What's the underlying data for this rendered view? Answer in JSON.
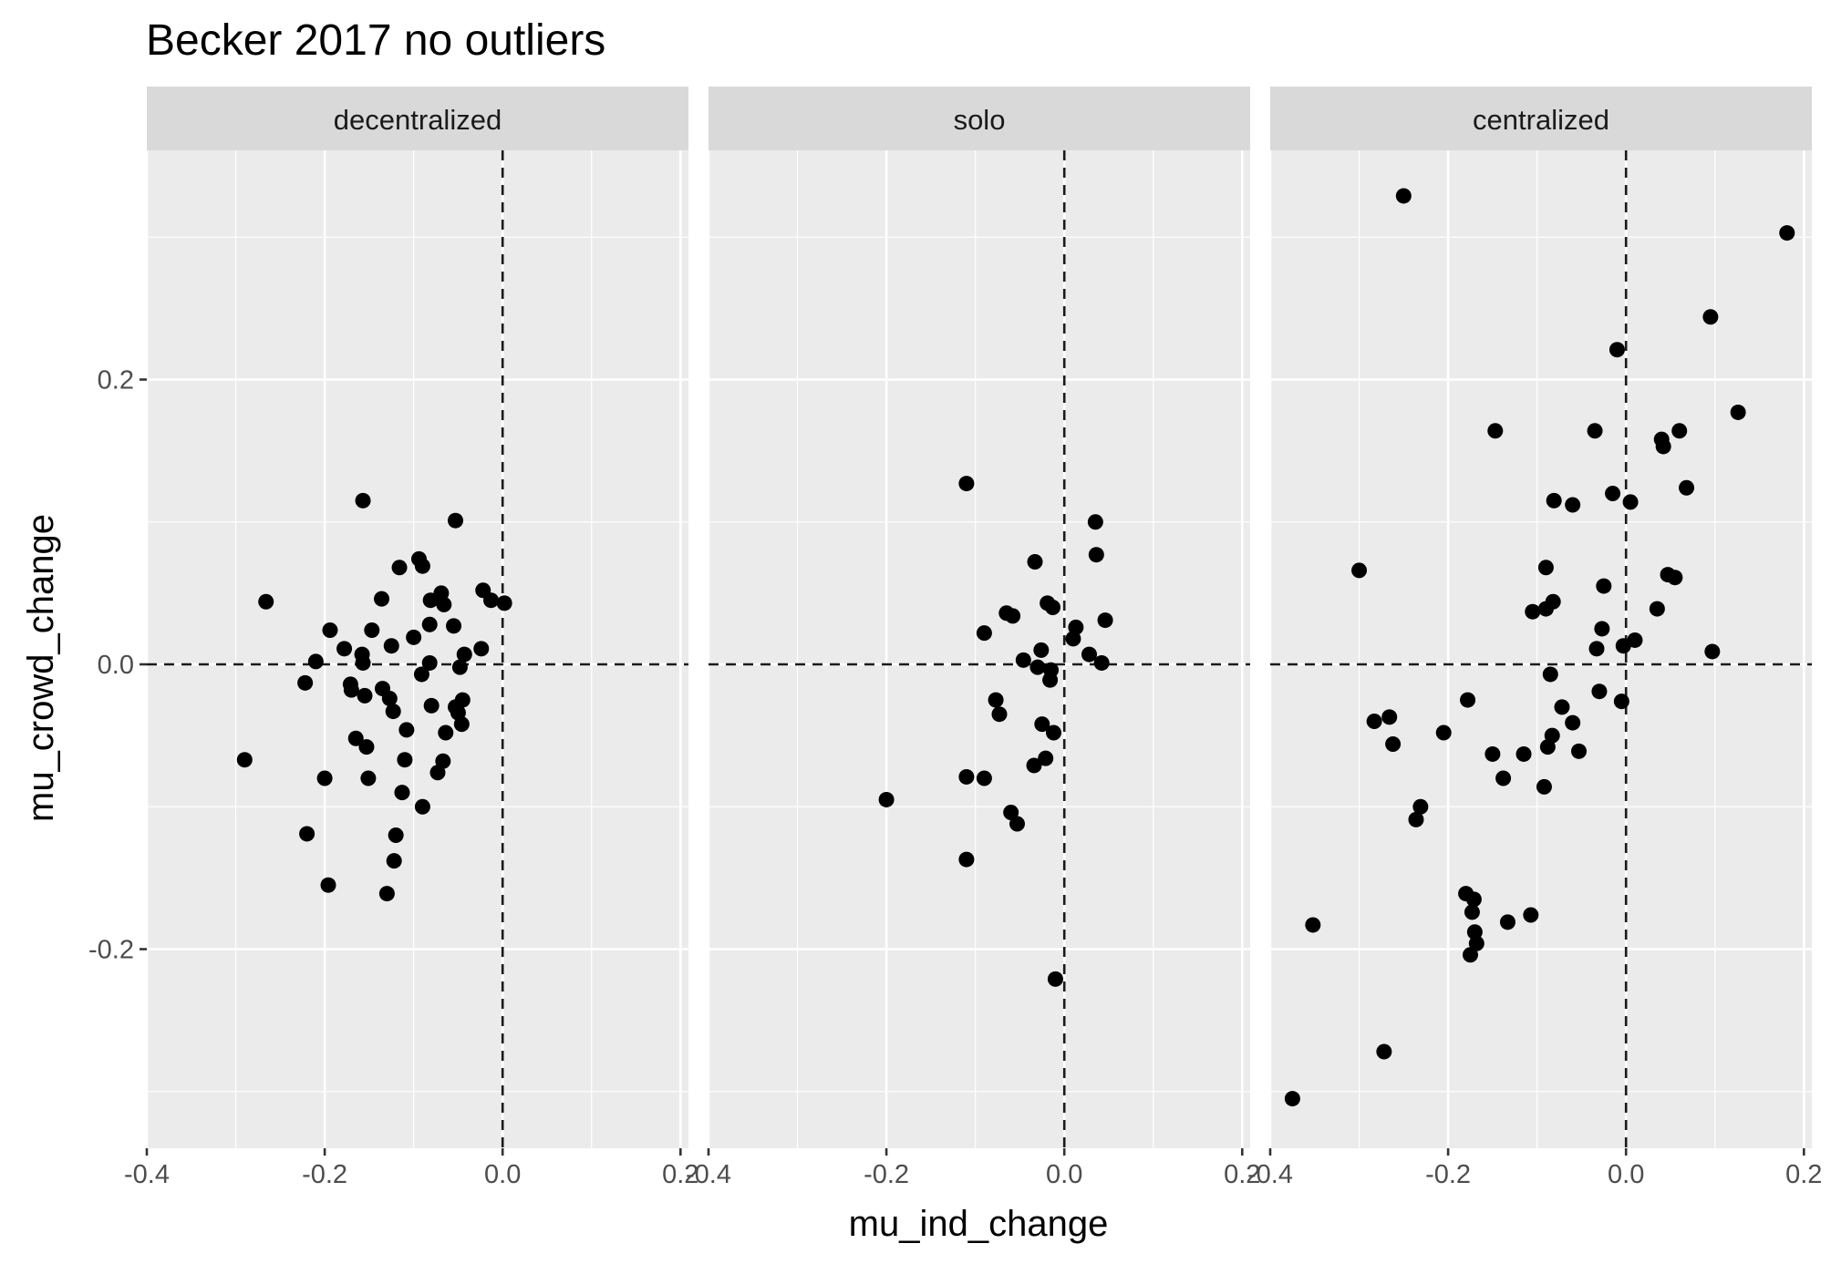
{
  "chart_data": {
    "type": "scatter",
    "title": "Becker 2017 no outliers",
    "xlabel": "mu_ind_change",
    "ylabel": "mu_crowd_change",
    "xlim": [
      -0.4,
      0.21
    ],
    "ylim": [
      -0.34,
      0.36
    ],
    "x_ticks": [
      -0.4,
      -0.2,
      0.0,
      0.2
    ],
    "x_tick_labels": [
      "-0.4",
      "-0.2",
      "0.0",
      "0.2"
    ],
    "y_ticks": [
      -0.2,
      0.0,
      0.2
    ],
    "y_tick_labels": [
      "-0.2",
      "0.0",
      "0.2"
    ],
    "reference_lines": {
      "x": 0,
      "y": 0,
      "style": "dashed"
    },
    "grid": true,
    "colors": {
      "panel_bg": "#ebebeb",
      "strip_bg": "#d9d9d9",
      "grid": "#ffffff",
      "point": "#000000"
    },
    "facets": [
      {
        "name": "decentralized",
        "points": [
          [
            -0.29,
            -0.067
          ],
          [
            -0.266,
            0.044
          ],
          [
            -0.222,
            -0.013
          ],
          [
            -0.22,
            -0.119
          ],
          [
            -0.21,
            0.002
          ],
          [
            -0.2,
            -0.08
          ],
          [
            -0.196,
            -0.155
          ],
          [
            -0.194,
            0.024
          ],
          [
            -0.178,
            0.011
          ],
          [
            -0.171,
            -0.014
          ],
          [
            -0.17,
            -0.018
          ],
          [
            -0.165,
            -0.052
          ],
          [
            -0.158,
            0.007
          ],
          [
            -0.157,
            0.115
          ],
          [
            -0.157,
            0.001
          ],
          [
            -0.155,
            -0.022
          ],
          [
            -0.153,
            -0.058
          ],
          [
            -0.151,
            -0.08
          ],
          [
            -0.147,
            0.024
          ],
          [
            -0.136,
            0.046
          ],
          [
            -0.135,
            -0.017
          ],
          [
            -0.13,
            -0.161
          ],
          [
            -0.127,
            -0.024
          ],
          [
            -0.125,
            0.013
          ],
          [
            -0.123,
            -0.033
          ],
          [
            -0.122,
            -0.138
          ],
          [
            -0.12,
            -0.12
          ],
          [
            -0.116,
            0.068
          ],
          [
            -0.113,
            -0.09
          ],
          [
            -0.11,
            -0.067
          ],
          [
            -0.108,
            -0.046
          ],
          [
            -0.1,
            0.019
          ],
          [
            -0.094,
            0.074
          ],
          [
            -0.091,
            -0.007
          ],
          [
            -0.09,
            -0.1
          ],
          [
            -0.09,
            0.069
          ],
          [
            -0.082,
            0.028
          ],
          [
            -0.082,
            0.001
          ],
          [
            -0.081,
            0.045
          ],
          [
            -0.08,
            -0.029
          ],
          [
            -0.073,
            -0.076
          ],
          [
            -0.069,
            0.05
          ],
          [
            -0.067,
            -0.068
          ],
          [
            -0.066,
            0.042
          ],
          [
            -0.064,
            -0.048
          ],
          [
            -0.055,
            0.027
          ],
          [
            -0.053,
            0.101
          ],
          [
            -0.053,
            -0.03
          ],
          [
            -0.05,
            -0.034
          ],
          [
            -0.048,
            -0.002
          ],
          [
            -0.046,
            -0.042
          ],
          [
            -0.045,
            -0.025
          ],
          [
            -0.043,
            0.007
          ],
          [
            -0.024,
            0.011
          ],
          [
            -0.022,
            0.052
          ],
          [
            -0.013,
            0.045
          ],
          [
            0.002,
            0.043
          ]
        ]
      },
      {
        "name": "solo",
        "points": [
          [
            -0.2,
            -0.095
          ],
          [
            -0.11,
            0.127
          ],
          [
            -0.11,
            -0.079
          ],
          [
            -0.11,
            -0.137
          ],
          [
            -0.09,
            0.022
          ],
          [
            -0.09,
            -0.08
          ],
          [
            -0.077,
            -0.025
          ],
          [
            -0.073,
            -0.035
          ],
          [
            -0.065,
            0.036
          ],
          [
            -0.06,
            -0.104
          ],
          [
            -0.058,
            0.034
          ],
          [
            -0.053,
            -0.112
          ],
          [
            -0.046,
            0.003
          ],
          [
            -0.034,
            -0.071
          ],
          [
            -0.033,
            0.072
          ],
          [
            -0.03,
            -0.002
          ],
          [
            -0.026,
            0.01
          ],
          [
            -0.025,
            -0.042
          ],
          [
            -0.021,
            -0.066
          ],
          [
            -0.019,
            0.043
          ],
          [
            -0.016,
            -0.011
          ],
          [
            -0.015,
            -0.004
          ],
          [
            -0.013,
            0.04
          ],
          [
            -0.012,
            -0.048
          ],
          [
            -0.01,
            -0.221
          ],
          [
            0.01,
            0.018
          ],
          [
            0.013,
            0.026
          ],
          [
            0.028,
            0.007
          ],
          [
            0.035,
            0.1
          ],
          [
            0.036,
            0.077
          ],
          [
            0.042,
            0.001
          ],
          [
            0.046,
            0.031
          ]
        ]
      },
      {
        "name": "centralized",
        "points": [
          [
            -0.375,
            -0.305
          ],
          [
            -0.352,
            -0.183
          ],
          [
            -0.3,
            0.066
          ],
          [
            -0.283,
            -0.04
          ],
          [
            -0.272,
            -0.272
          ],
          [
            -0.266,
            -0.037
          ],
          [
            -0.262,
            -0.056
          ],
          [
            -0.25,
            0.329
          ],
          [
            -0.236,
            -0.109
          ],
          [
            -0.231,
            -0.1
          ],
          [
            -0.205,
            -0.048
          ],
          [
            -0.18,
            -0.161
          ],
          [
            -0.178,
            -0.025
          ],
          [
            -0.175,
            -0.204
          ],
          [
            -0.173,
            -0.174
          ],
          [
            -0.171,
            -0.165
          ],
          [
            -0.17,
            -0.188
          ],
          [
            -0.168,
            -0.196
          ],
          [
            -0.15,
            -0.063
          ],
          [
            -0.147,
            0.164
          ],
          [
            -0.138,
            -0.08
          ],
          [
            -0.133,
            -0.181
          ],
          [
            -0.115,
            -0.063
          ],
          [
            -0.107,
            -0.176
          ],
          [
            -0.105,
            0.037
          ],
          [
            -0.092,
            -0.086
          ],
          [
            -0.09,
            0.068
          ],
          [
            -0.09,
            0.039
          ],
          [
            -0.088,
            -0.058
          ],
          [
            -0.085,
            -0.007
          ],
          [
            -0.083,
            -0.05
          ],
          [
            -0.082,
            0.044
          ],
          [
            -0.081,
            0.115
          ],
          [
            -0.072,
            -0.03
          ],
          [
            -0.06,
            0.112
          ],
          [
            -0.06,
            -0.041
          ],
          [
            -0.053,
            -0.061
          ],
          [
            -0.035,
            0.164
          ],
          [
            -0.033,
            0.011
          ],
          [
            -0.03,
            -0.019
          ],
          [
            -0.027,
            0.025
          ],
          [
            -0.025,
            0.055
          ],
          [
            -0.015,
            0.12
          ],
          [
            -0.01,
            0.221
          ],
          [
            -0.005,
            -0.026
          ],
          [
            -0.003,
            0.013
          ],
          [
            0.005,
            0.114
          ],
          [
            0.01,
            0.017
          ],
          [
            0.035,
            0.039
          ],
          [
            0.04,
            0.158
          ],
          [
            0.042,
            0.153
          ],
          [
            0.047,
            0.063
          ],
          [
            0.055,
            0.061
          ],
          [
            0.06,
            0.164
          ],
          [
            0.068,
            0.124
          ],
          [
            0.095,
            0.244
          ],
          [
            0.097,
            0.009
          ],
          [
            0.126,
            0.177
          ],
          [
            0.181,
            0.303
          ]
        ]
      }
    ]
  }
}
